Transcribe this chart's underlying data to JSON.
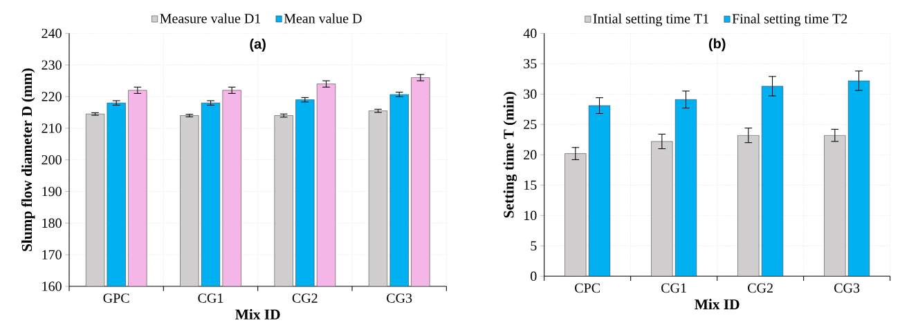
{
  "chart_data": [
    {
      "type": "bar",
      "title": "(a)",
      "xlabel": "Mix ID",
      "ylabel": "Slump flow diameter D (mm)",
      "categories": [
        "GPC",
        "CG1",
        "CG2",
        "CG3"
      ],
      "series": [
        {
          "name": "Measure value D1",
          "color": "#d0cece",
          "values": [
            214.5,
            214,
            214,
            215.5
          ],
          "errors": [
            0.4,
            0.4,
            0.5,
            0.5
          ]
        },
        {
          "name": "Mean value D",
          "color": "#00b0f0",
          "values": [
            218,
            218,
            219,
            220.7
          ],
          "errors": [
            0.7,
            0.7,
            0.7,
            0.7
          ]
        },
        {
          "color": "#f4b6e6",
          "values": [
            222,
            222,
            224,
            226
          ],
          "errors": [
            1,
            1,
            1,
            1
          ]
        }
      ],
      "ylim": [
        160,
        240
      ],
      "yticks": [
        160,
        170,
        180,
        190,
        200,
        210,
        220,
        230,
        240
      ],
      "grid": true,
      "legend": "top"
    },
    {
      "type": "bar",
      "title": "(b)",
      "xlabel": "Mix ID",
      "ylabel": "Setting time T (min)",
      "categories": [
        "CPC",
        "CG1",
        "CG2",
        "CG3"
      ],
      "series": [
        {
          "name": "Intial setting time T1",
          "color": "#d0cece",
          "values": [
            20.2,
            22.2,
            23.2,
            23.2
          ],
          "errors": [
            1,
            1.2,
            1.2,
            1
          ]
        },
        {
          "name": "Final setting time T2",
          "color": "#00b0f0",
          "values": [
            28.1,
            29.1,
            31.3,
            32.2
          ],
          "errors": [
            1.3,
            1.4,
            1.6,
            1.6
          ]
        }
      ],
      "ylim": [
        0,
        40
      ],
      "yticks": [
        0,
        5,
        10,
        15,
        20,
        25,
        30,
        35,
        40
      ],
      "grid": true,
      "legend": "top"
    }
  ]
}
